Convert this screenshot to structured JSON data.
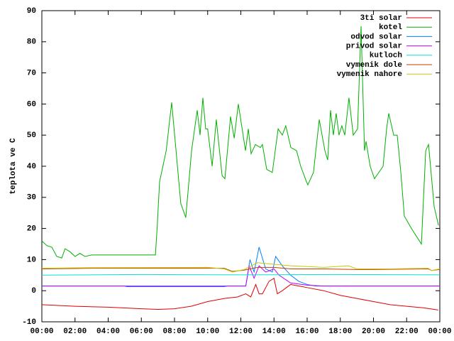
{
  "chart_data": {
    "type": "line",
    "ylabel": "teplota ve C",
    "xlim": [
      0,
      24
    ],
    "ylim": [
      -10,
      90
    ],
    "yticks": [
      -10,
      0,
      10,
      20,
      30,
      40,
      50,
      60,
      70,
      80,
      90
    ],
    "xticks": [
      {
        "value": 0,
        "label": "00:00"
      },
      {
        "value": 2,
        "label": "02:00"
      },
      {
        "value": 4,
        "label": "04:00"
      },
      {
        "value": 6,
        "label": "06:00"
      },
      {
        "value": 8,
        "label": "08:00"
      },
      {
        "value": 10,
        "label": "10:00"
      },
      {
        "value": 12,
        "label": "12:00"
      },
      {
        "value": 14,
        "label": "14:00"
      },
      {
        "value": 16,
        "label": "16:00"
      },
      {
        "value": 18,
        "label": "18:00"
      },
      {
        "value": 20,
        "label": "20:00"
      },
      {
        "value": 22,
        "label": "22:00"
      },
      {
        "value": 24,
        "label": "00:00"
      }
    ],
    "legend": "top-right",
    "series": [
      {
        "name": "3ti solar",
        "color": "#e00000",
        "x": [
          0,
          2,
          4,
          6,
          7,
          8,
          9,
          10,
          11,
          11.8,
          12.3,
          12.6,
          12.9,
          13.1,
          13.3,
          13.7,
          14,
          14.2,
          14.5,
          15,
          15.5,
          16,
          17,
          18,
          19,
          20,
          21,
          22,
          23,
          23.9
        ],
        "values": [
          -4.5,
          -5,
          -5.3,
          -5.8,
          -6,
          -5.8,
          -5,
          -3.5,
          -2.5,
          -2,
          -1,
          -2,
          2,
          -1,
          -1,
          3,
          4,
          -1,
          0,
          2,
          1.5,
          1,
          0,
          -1.5,
          -2.5,
          -3.5,
          -4.5,
          -5,
          -5.5,
          -6.2
        ]
      },
      {
        "name": "kotel",
        "color": "#00b000",
        "x": [
          0,
          0.3,
          0.6,
          0.9,
          1.2,
          1.4,
          1.7,
          2.0,
          2.3,
          2.6,
          3,
          4,
          5,
          6,
          6.85,
          6.95,
          7.1,
          7.5,
          7.83,
          8.38,
          8.68,
          9.03,
          9.37,
          9.54,
          9.71,
          9.88,
          10.0,
          10.27,
          10.52,
          10.87,
          11.04,
          11.38,
          11.6,
          11.85,
          12.28,
          12.45,
          12.62,
          12.88,
          13.18,
          13.3,
          13.56,
          13.9,
          14.25,
          14.5,
          14.71,
          15.02,
          15.36,
          15.61,
          15.96,
          16.04,
          16.38,
          16.73,
          17.07,
          17.24,
          17.41,
          17.58,
          17.75,
          17.92,
          18.09,
          18.27,
          18.52,
          18.78,
          19.04,
          19.25,
          19.46,
          19.55,
          19.8,
          20.06,
          20.58,
          20.79,
          20.92,
          21.22,
          21.43,
          21.65,
          21.86,
          22.29,
          22.89,
          23.15,
          23.32,
          23.66,
          23.92
        ],
        "values": [
          16,
          14.5,
          14,
          11,
          10.5,
          13.5,
          12.5,
          11,
          12,
          11,
          11.5,
          11.5,
          11.5,
          11.5,
          11.5,
          20,
          35,
          45,
          60.5,
          28,
          23.5,
          45,
          58,
          50,
          62,
          52,
          52,
          40,
          55,
          37,
          36,
          56,
          49,
          60,
          45,
          52,
          44,
          47,
          46,
          47,
          39,
          38,
          52,
          50,
          53,
          46,
          45,
          40,
          35,
          34,
          38,
          55,
          45,
          42,
          58,
          50,
          57,
          50,
          53,
          50,
          62,
          50,
          52,
          85,
          45,
          48,
          40,
          36,
          40,
          52,
          57,
          50,
          50,
          38,
          24,
          20,
          15,
          45,
          47,
          27,
          21
        ]
      },
      {
        "name": "odvod solar",
        "color": "#0080ff",
        "x": [
          0,
          5,
          5.1,
          11,
          11.2,
          12.3,
          12.55,
          12.8,
          13.1,
          13.5,
          13.9,
          14.1,
          14.5,
          15,
          15.5,
          16,
          16.5,
          17.5,
          24
        ],
        "values": [
          1.5,
          1.5,
          1.3,
          1.3,
          1.5,
          1.5,
          10,
          6,
          14,
          7,
          6,
          11,
          8,
          5,
          3,
          2,
          1.5,
          1.5,
          1.5
        ]
      },
      {
        "name": "privod solar",
        "color": "#c000ff",
        "x": [
          0,
          12.3,
          12.5,
          12.8,
          13.1,
          13.5,
          14,
          14.3,
          15,
          16,
          17,
          24
        ],
        "values": [
          1.5,
          1.5,
          8,
          4,
          8,
          6,
          7,
          5,
          2.5,
          1.8,
          1.5,
          1.5
        ]
      },
      {
        "name": "kutloch",
        "color": "#00e0e0",
        "x": [
          0,
          6,
          12,
          18,
          24
        ],
        "values": [
          5,
          5.2,
          5.1,
          5.2,
          5.1
        ]
      },
      {
        "name": "vymenik dole",
        "color": "#c04000",
        "x": [
          0,
          3,
          11,
          11.5,
          12.2,
          13,
          14,
          15,
          17,
          19,
          20,
          23.3,
          23.5,
          24
        ],
        "values": [
          7,
          7.2,
          7.2,
          6.2,
          6.6,
          7.5,
          7.5,
          7,
          7,
          6.8,
          6.8,
          7,
          6.5,
          6.8
        ]
      },
      {
        "name": "vymenik nahore",
        "color": "#c8c800",
        "x": [
          0,
          3,
          10,
          11,
          11.5,
          12.2,
          13,
          14,
          15,
          17,
          18.5,
          19,
          21,
          23.3,
          23.5,
          24
        ],
        "values": [
          7.2,
          7.4,
          7.5,
          7,
          6,
          6.8,
          9,
          8.5,
          8,
          7.5,
          8,
          7,
          7,
          7.2,
          6.5,
          7
        ]
      }
    ]
  }
}
